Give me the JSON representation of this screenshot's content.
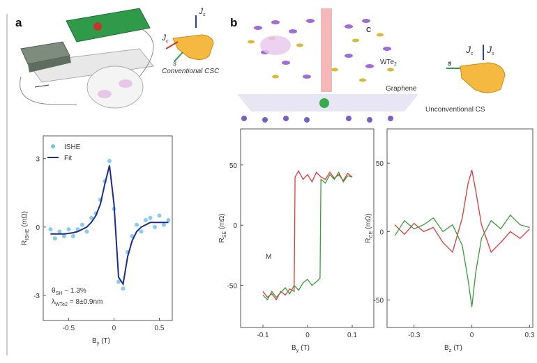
{
  "panels": [
    "a",
    "b"
  ],
  "illustration": {
    "a_hand": {
      "jc": {
        "text": "J",
        "sub": "c"
      },
      "js": {
        "text": "J",
        "sub": "s"
      },
      "s": "s",
      "caption": "Conventional CSC"
    },
    "b_crystal": {
      "c": "C",
      "material": {
        "text": "WTe",
        "sub": "2"
      },
      "substrate": "Graphene"
    },
    "b_hand": {
      "jc": {
        "text": "J",
        "sub": "c"
      },
      "js": {
        "text": "J",
        "sub": "s"
      },
      "s": "s",
      "caption": "Unconventional CS"
    }
  },
  "chart_data": [
    {
      "type": "line",
      "xlabel": {
        "text": "B",
        "sub": "y",
        "rest": "(T)"
      },
      "ylabel": {
        "text": "R",
        "sub": "ISHE",
        "rest": "(mΩ)"
      },
      "xlim": [
        -0.78,
        0.65
      ],
      "ylim": [
        -4.1,
        4.0
      ],
      "xticks": [
        -0.5,
        0,
        0.5
      ],
      "yticks": [
        -3,
        0,
        3
      ],
      "legend": "upper left",
      "annotations": [
        {
          "text": "θ",
          "sub": "SH",
          "rest": "~ 1.3%"
        },
        {
          "text": "λ",
          "sub": "WTe2",
          "rest": "= 8±0.9nm"
        }
      ],
      "x": [
        -0.7,
        -0.65,
        -0.6,
        -0.55,
        -0.5,
        -0.45,
        -0.4,
        -0.35,
        -0.3,
        -0.25,
        -0.2,
        -0.15,
        -0.1,
        -0.05,
        0,
        0.05,
        0.1,
        0.15,
        0.2,
        0.25,
        0.3,
        0.35,
        0.4,
        0.45,
        0.5,
        0.55,
        0.6
      ],
      "series": [
        {
          "name": "ISHE",
          "mode": "markers",
          "color": "#74c3ec",
          "values": [
            -0.1,
            -0.5,
            -0.2,
            -0.4,
            -0.1,
            -0.4,
            -0.1,
            0.1,
            -0.2,
            0.4,
            0.6,
            1.2,
            2.0,
            2.9,
            0.8,
            -2.4,
            -2.7,
            -1.1,
            -0.4,
            0.1,
            -0.2,
            0.3,
            0.4,
            0.0,
            0.5,
            0.1,
            0.3
          ]
        },
        {
          "name": "Fit",
          "mode": "line",
          "color": "#1b2c8a",
          "values": [
            -0.3,
            -0.3,
            -0.3,
            -0.3,
            -0.28,
            -0.25,
            -0.2,
            -0.1,
            0.0,
            0.2,
            0.5,
            1.0,
            1.9,
            2.7,
            1.0,
            -2.2,
            -2.5,
            -1.3,
            -0.6,
            -0.2,
            0.0,
            0.1,
            0.2,
            0.2,
            0.2,
            0.2,
            0.2
          ]
        }
      ]
    },
    {
      "type": "line",
      "xlabel": {
        "text": "B",
        "sub": "y",
        "rest": "(T)"
      },
      "ylabel": {
        "text": "R",
        "sub": "SE",
        "rest": "(mΩ)"
      },
      "xlim": [
        -0.15,
        0.15
      ],
      "ylim": [
        -85,
        80
      ],
      "xticks": [
        -0.1,
        0,
        0.1
      ],
      "yticks": [
        -50,
        0,
        50
      ],
      "annotations": [
        {
          "text": "M"
        }
      ],
      "series": [
        {
          "mode": "line",
          "color": "#e0393a",
          "x": [
            -0.1,
            -0.09,
            -0.08,
            -0.07,
            -0.06,
            -0.05,
            -0.04,
            -0.03,
            -0.028,
            -0.02,
            -0.01,
            0,
            0.01,
            0.02,
            0.03,
            0.04,
            0.05,
            0.06,
            0.07,
            0.08,
            0.09,
            0.1
          ],
          "values": [
            -55,
            -60,
            -57,
            -62,
            -55,
            -58,
            -53,
            -55,
            40,
            45,
            38,
            42,
            36,
            44,
            40,
            38,
            44,
            39,
            42,
            37,
            43,
            40
          ]
        },
        {
          "mode": "line",
          "color": "#3a9b3a",
          "x": [
            -0.1,
            -0.09,
            -0.08,
            -0.07,
            -0.06,
            -0.05,
            -0.04,
            -0.03,
            -0.02,
            -0.01,
            0,
            0.01,
            0.02,
            0.028,
            0.03,
            0.04,
            0.05,
            0.06,
            0.07,
            0.08,
            0.09,
            0.1
          ],
          "values": [
            -58,
            -62,
            -55,
            -60,
            -56,
            -52,
            -57,
            -50,
            -54,
            -48,
            -45,
            -50,
            -47,
            -44,
            38,
            35,
            42,
            38,
            44,
            36,
            41,
            40
          ]
        }
      ]
    },
    {
      "type": "line",
      "xlabel": {
        "text": "B",
        "sub": "z",
        "rest": "(T)"
      },
      "ylabel": {
        "text": "R",
        "sub": "CE",
        "rest": "(mΩ)"
      },
      "xlim": [
        -0.44,
        0.32
      ],
      "ylim": [
        -70,
        75
      ],
      "xticks": [
        -0.3,
        0,
        0.3
      ],
      "yticks": [
        -50,
        0,
        50
      ],
      "series": [
        {
          "mode": "line",
          "color": "#e0393a",
          "x": [
            -0.4,
            -0.35,
            -0.3,
            -0.25,
            -0.2,
            -0.15,
            -0.1,
            -0.05,
            -0.02,
            0,
            0.02,
            0.05,
            0.1,
            0.15,
            0.2,
            0.25,
            0.3
          ],
          "values": [
            5,
            -2,
            6,
            0,
            3,
            -8,
            -15,
            10,
            35,
            45,
            30,
            5,
            -15,
            -8,
            0,
            -5,
            2
          ]
        },
        {
          "mode": "line",
          "color": "#3a9b3a",
          "x": [
            -0.4,
            -0.35,
            -0.3,
            -0.25,
            -0.2,
            -0.15,
            -0.1,
            -0.05,
            -0.02,
            0,
            0.02,
            0.05,
            0.1,
            0.15,
            0.2,
            0.25,
            0.3
          ],
          "values": [
            -3,
            8,
            2,
            5,
            10,
            0,
            5,
            -10,
            -35,
            -55,
            -30,
            -5,
            8,
            2,
            12,
            5,
            3
          ]
        }
      ]
    }
  ]
}
